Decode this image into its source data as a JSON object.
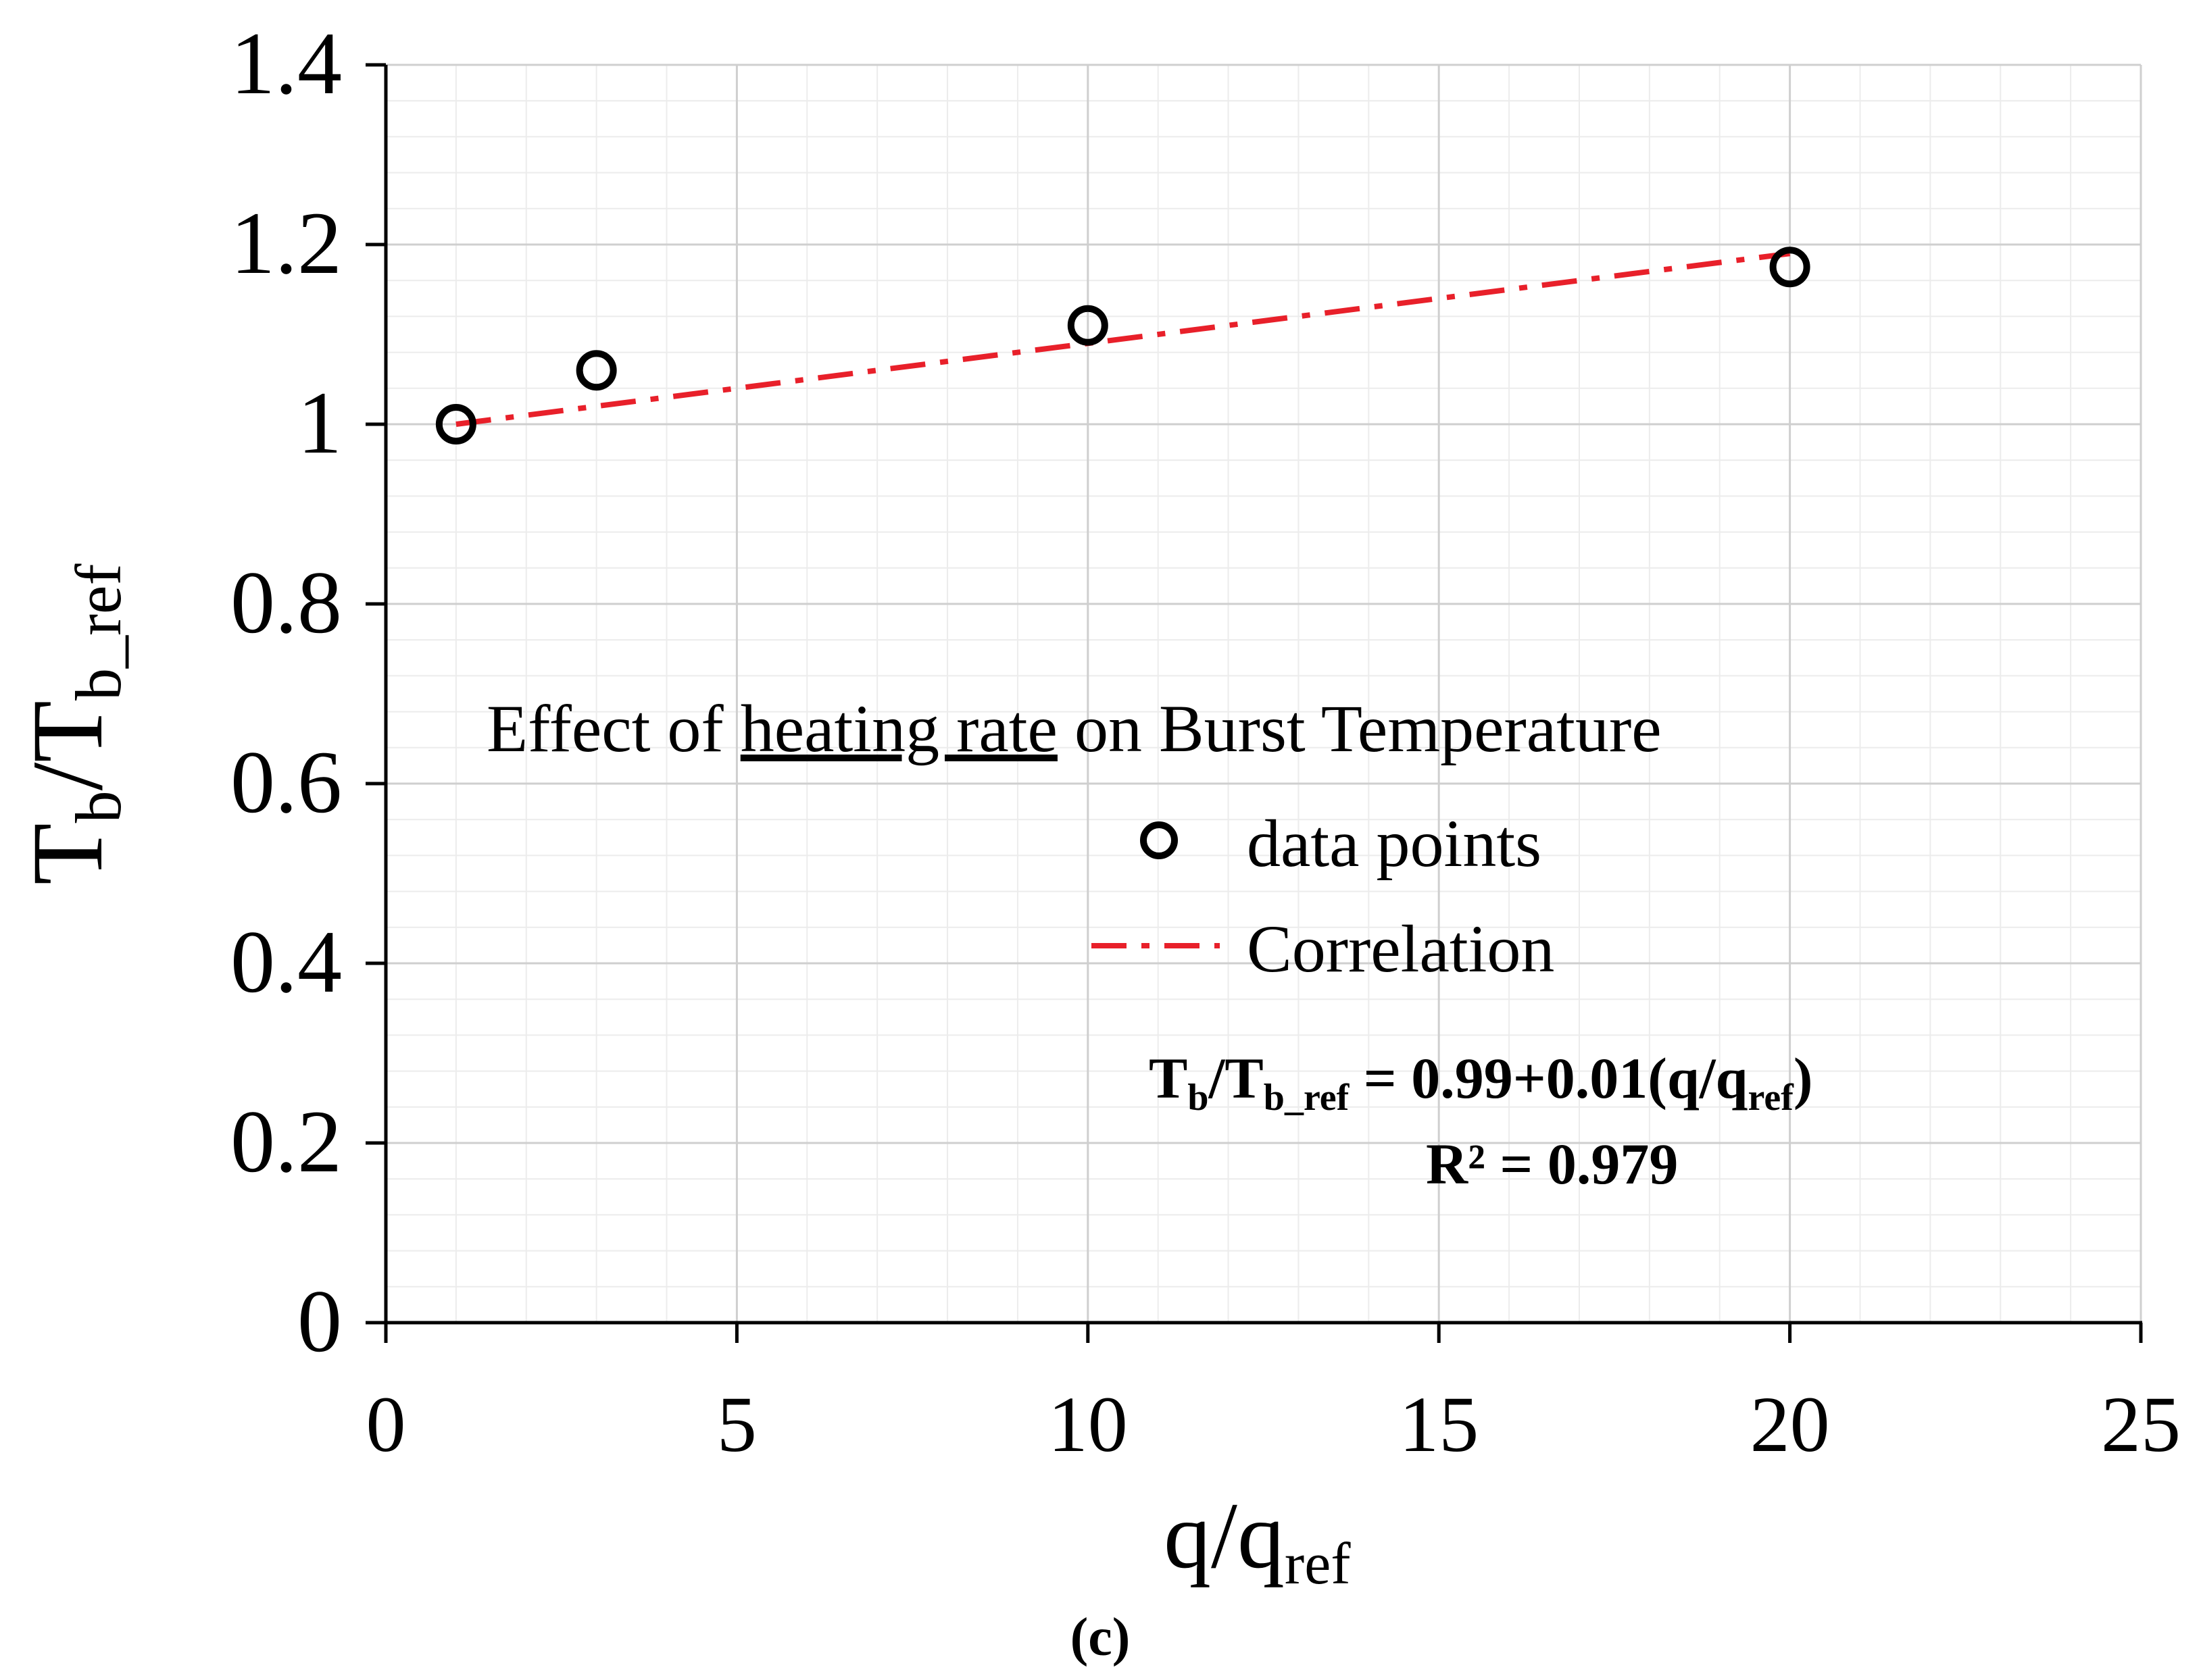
{
  "chart_data": {
    "type": "scatter",
    "title": "Effect of heating rate on Burst Temperature",
    "title_parts": {
      "before": "Effect of ",
      "underlined": "heating rate",
      "after": " on Burst Temperature"
    },
    "xlabel": {
      "main": "q/q",
      "sub": "ref"
    },
    "ylabel": {
      "main": "T",
      "sub1": "b",
      "mid": "/T",
      "sub2": "b_ref"
    },
    "xlim": [
      0,
      25
    ],
    "ylim": [
      0,
      1.4
    ],
    "x_major_ticks": [
      0,
      5,
      10,
      15,
      20,
      25
    ],
    "x_tick_labels": [
      "0",
      "5",
      "10",
      "15",
      "20",
      "25"
    ],
    "x_minor_step": 1,
    "y_major_ticks": [
      0,
      0.2,
      0.4,
      0.6,
      0.8,
      1,
      1.2,
      1.4
    ],
    "y_tick_labels": [
      "0",
      "0.2",
      "0.4",
      "0.6",
      "0.8",
      "1",
      "1.2",
      "1.4"
    ],
    "y_minor_step": 0.04,
    "grid": true,
    "series": [
      {
        "name": "data points",
        "kind": "scatter",
        "marker": "open-circle",
        "color": "#000000",
        "x": [
          1,
          3,
          10,
          20
        ],
        "y": [
          1.0,
          1.06,
          1.11,
          1.175
        ]
      },
      {
        "name": "Correlation",
        "kind": "line",
        "style": "dash-dot",
        "color": "#e8202a",
        "x": [
          1,
          20
        ],
        "y": [
          1.0,
          1.19
        ]
      }
    ],
    "legend": {
      "position": "center",
      "entries": [
        "data points",
        "Correlation"
      ]
    },
    "equation": {
      "lhs_main": "T",
      "lhs_sub1": "b",
      "lhs_mid": "/T",
      "lhs_sub2": "b_ref",
      "rhs": " = 0.99+0.01(q/q",
      "rhs_sub": "ref",
      "rhs_close": ")",
      "r2": "R² = 0.979"
    },
    "caption": "(c)"
  }
}
